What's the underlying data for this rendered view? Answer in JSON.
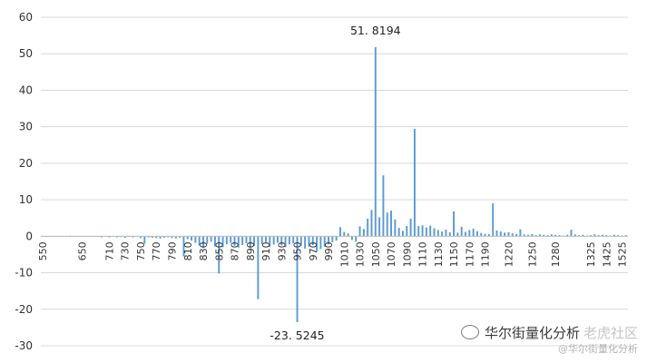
{
  "chart_data": {
    "type": "bar",
    "title": "",
    "xlabel": "",
    "ylabel": "",
    "ylim": [
      -30,
      60
    ],
    "yticks": [
      -30,
      -20,
      -10,
      0,
      10,
      20,
      30,
      40,
      50,
      60
    ],
    "grid": "horizontal",
    "bar_color": "#5b9bd5",
    "x_tick_labels": [
      "550",
      "650",
      "710",
      "730",
      "750",
      "770",
      "790",
      "810",
      "830",
      "850",
      "870",
      "890",
      "910",
      "930",
      "950",
      "970",
      "990",
      "1010",
      "1030",
      "1050",
      "1070",
      "1090",
      "1110",
      "1130",
      "1150",
      "1170",
      "1190",
      "1220",
      "1250",
      "1280",
      "1325",
      "1425",
      "1525"
    ],
    "categories": [
      "550",
      "560",
      "570",
      "580",
      "590",
      "600",
      "610",
      "620",
      "630",
      "640",
      "650",
      "660",
      "670",
      "680",
      "690",
      "700",
      "705",
      "710",
      "715",
      "720",
      "725",
      "730",
      "735",
      "740",
      "745",
      "750",
      "755",
      "760",
      "765",
      "770",
      "775",
      "780",
      "785",
      "790",
      "795",
      "800",
      "805",
      "810",
      "815",
      "820",
      "825",
      "830",
      "835",
      "840",
      "845",
      "850",
      "855",
      "860",
      "865",
      "870",
      "875",
      "880",
      "885",
      "890",
      "895",
      "900",
      "905",
      "910",
      "915",
      "920",
      "925",
      "930",
      "935",
      "940",
      "945",
      "950",
      "955",
      "960",
      "965",
      "970",
      "975",
      "980",
      "985",
      "990",
      "995",
      "1000",
      "1005",
      "1010",
      "1015",
      "1020",
      "1025",
      "1030",
      "1035",
      "1040",
      "1045",
      "1050",
      "1055",
      "1060",
      "1065",
      "1070",
      "1075",
      "1080",
      "1085",
      "1090",
      "1095",
      "1100",
      "1105",
      "1110",
      "1115",
      "1120",
      "1125",
      "1130",
      "1135",
      "1140",
      "1145",
      "1150",
      "1155",
      "1160",
      "1165",
      "1170",
      "1175",
      "1180",
      "1185",
      "1190",
      "1195",
      "1200",
      "1205",
      "1210",
      "1215",
      "1220",
      "1225",
      "1230",
      "1235",
      "1240",
      "1245",
      "1250",
      "1255",
      "1260",
      "1265",
      "1270",
      "1275",
      "1280",
      "1285",
      "1290",
      "1295",
      "1300",
      "1305",
      "1310",
      "1315",
      "1320",
      "1325",
      "1350",
      "1375",
      "1400",
      "1425",
      "1450",
      "1475",
      "1500",
      "1525",
      "1550"
    ],
    "values": [
      -0.1,
      -0.1,
      0,
      -0.1,
      0,
      -0.1,
      0,
      -0.2,
      0,
      -0.1,
      -0.1,
      0,
      -0.1,
      0,
      -0.2,
      -0.3,
      0,
      -0.3,
      -0.1,
      -0.3,
      -0.2,
      -0.4,
      -0.1,
      -0.3,
      -0.2,
      -0.5,
      -2.0,
      -0.3,
      -0.4,
      -0.5,
      -0.6,
      -0.4,
      -0.3,
      -0.5,
      -0.6,
      -0.4,
      -5.5,
      -0.8,
      -1.2,
      -1.8,
      -2.5,
      -3.2,
      -2.1,
      -1.5,
      -2.8,
      -10.2,
      -3.0,
      -2.2,
      -1.8,
      -2.6,
      -3.1,
      -2.4,
      -1.9,
      -3.3,
      -2.7,
      -17.2,
      -2.2,
      -1.6,
      -2.9,
      -2.3,
      -1.8,
      -2.5,
      -3.0,
      -2.2,
      -1.9,
      -23.5245,
      -2.6,
      -3.4,
      -2.8,
      -2.4,
      -4.2,
      -3.5,
      -2.9,
      -2.2,
      -1.6,
      -1.2,
      2.5,
      1.2,
      0.8,
      -1.0,
      -1.5,
      2.7,
      2.0,
      4.8,
      7.2,
      51.8194,
      5.2,
      16.7,
      6.5,
      7.0,
      4.6,
      2.3,
      1.5,
      2.8,
      4.8,
      29.4,
      2.8,
      3.0,
      2.4,
      2.9,
      2.2,
      1.7,
      1.3,
      1.8,
      1.1,
      6.8,
      1.0,
      2.6,
      1.2,
      1.7,
      2.1,
      1.4,
      0.9,
      0.7,
      0.6,
      9.0,
      1.6,
      1.3,
      1.0,
      1.1,
      0.8,
      0.6,
      1.9,
      0.5,
      0.4,
      0.6,
      0.3,
      0.5,
      0.4,
      0.3,
      0.5,
      0.4,
      0.3,
      0.2,
      0.4,
      1.8,
      0.5,
      0.3,
      0.4,
      0.2,
      0.3,
      0.5,
      0.3,
      0.4,
      0.3,
      0.2,
      0.4,
      0.3,
      0.2,
      0.3
    ],
    "data_labels": [
      {
        "category": "1050",
        "text": "51. 8194"
      },
      {
        "category": "950",
        "text": "-23. 5245"
      }
    ]
  },
  "watermark": {
    "primary": "华尔街量化分析",
    "faint": "老虎社区",
    "secondary": "@华尔街量化分析"
  }
}
